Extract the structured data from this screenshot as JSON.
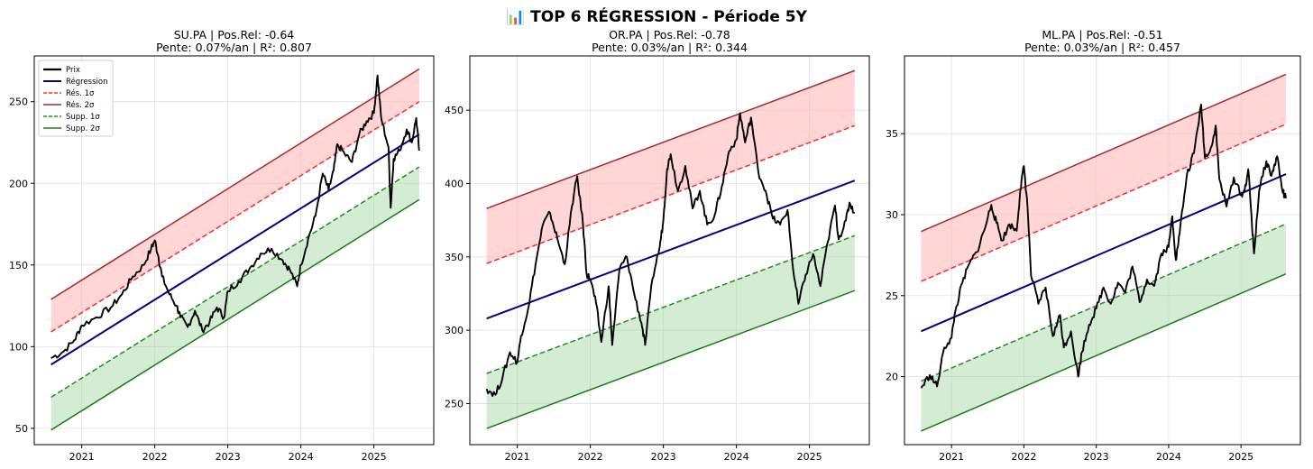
{
  "suptitle": "📊 TOP 6 RÉGRESSION - Période 5Y",
  "legend_labels": [
    "Prix",
    "Régression",
    "Rés. 1σ",
    "Rés. 2σ",
    "Supp. 1σ",
    "Supp. 2σ"
  ],
  "colors": {
    "price": "#000000",
    "regression": "#000080",
    "res1": "#ff2a2a",
    "res2": "#a52a2a",
    "supp1": "#228b22",
    "supp2": "#1a7a1a",
    "res_fill": "#ffb3b3",
    "supp_fill": "#9fd29f"
  },
  "chart_data": [
    {
      "type": "line",
      "title_line1": "SU.PA | Pos.Rel: -0.64",
      "title_line2": "Pente: 0.07%/an | R²: 0.807",
      "x_range": [
        2020.58,
        2025.62
      ],
      "xlim": [
        2020.35,
        2025.82
      ],
      "ylim": [
        40,
        278
      ],
      "xticks": [
        2021,
        2022,
        2023,
        2024,
        2025
      ],
      "yticks": [
        50,
        100,
        150,
        200,
        250
      ],
      "legend": "top-left",
      "regression": [
        89,
        230
      ],
      "sigma": 20,
      "price": [
        [
          2020.58,
          93
        ],
        [
          2020.75,
          97
        ],
        [
          2020.9,
          104
        ],
        [
          2021.0,
          113
        ],
        [
          2021.2,
          118
        ],
        [
          2021.4,
          124
        ],
        [
          2021.55,
          132
        ],
        [
          2021.7,
          143
        ],
        [
          2021.85,
          150
        ],
        [
          2021.95,
          160
        ],
        [
          2022.0,
          165
        ],
        [
          2022.05,
          155
        ],
        [
          2022.1,
          143
        ],
        [
          2022.2,
          132
        ],
        [
          2022.3,
          125
        ],
        [
          2022.35,
          118
        ],
        [
          2022.45,
          112
        ],
        [
          2022.55,
          122
        ],
        [
          2022.65,
          110
        ],
        [
          2022.75,
          115
        ],
        [
          2022.85,
          124
        ],
        [
          2022.95,
          118
        ],
        [
          2023.0,
          134
        ],
        [
          2023.15,
          140
        ],
        [
          2023.3,
          148
        ],
        [
          2023.45,
          157
        ],
        [
          2023.6,
          160
        ],
        [
          2023.75,
          153
        ],
        [
          2023.85,
          147
        ],
        [
          2023.95,
          137
        ],
        [
          2024.0,
          150
        ],
        [
          2024.1,
          166
        ],
        [
          2024.2,
          180
        ],
        [
          2024.3,
          206
        ],
        [
          2024.38,
          196
        ],
        [
          2024.45,
          208
        ],
        [
          2024.5,
          224
        ],
        [
          2024.6,
          218
        ],
        [
          2024.7,
          213
        ],
        [
          2024.8,
          230
        ],
        [
          2024.9,
          238
        ],
        [
          2025.0,
          243
        ],
        [
          2025.05,
          266
        ],
        [
          2025.1,
          240
        ],
        [
          2025.2,
          222
        ],
        [
          2025.23,
          185
        ],
        [
          2025.27,
          215
        ],
        [
          2025.35,
          220
        ],
        [
          2025.45,
          233
        ],
        [
          2025.52,
          225
        ],
        [
          2025.58,
          240
        ],
        [
          2025.62,
          220
        ]
      ]
    },
    {
      "type": "line",
      "title_line1": "OR.PA | Pos.Rel: -0.78",
      "title_line2": "Pente: 0.03%/an | R²: 0.344",
      "x_range": [
        2020.58,
        2025.62
      ],
      "xlim": [
        2020.35,
        2025.82
      ],
      "ylim": [
        222,
        487
      ],
      "xticks": [
        2021,
        2022,
        2023,
        2024,
        2025
      ],
      "yticks": [
        250,
        300,
        350,
        400,
        450
      ],
      "legend": "none",
      "regression": [
        308,
        402
      ],
      "sigma": 37.5,
      "price": [
        [
          2020.58,
          260
        ],
        [
          2020.7,
          256
        ],
        [
          2020.8,
          268
        ],
        [
          2020.9,
          285
        ],
        [
          2021.0,
          278
        ],
        [
          2021.05,
          296
        ],
        [
          2021.15,
          315
        ],
        [
          2021.25,
          345
        ],
        [
          2021.35,
          372
        ],
        [
          2021.45,
          380
        ],
        [
          2021.55,
          362
        ],
        [
          2021.65,
          345
        ],
        [
          2021.75,
          385
        ],
        [
          2021.82,
          405
        ],
        [
          2021.9,
          372
        ],
        [
          2021.95,
          338
        ],
        [
          2022.0,
          335
        ],
        [
          2022.08,
          318
        ],
        [
          2022.15,
          292
        ],
        [
          2022.25,
          330
        ],
        [
          2022.3,
          290
        ],
        [
          2022.4,
          342
        ],
        [
          2022.5,
          350
        ],
        [
          2022.6,
          325
        ],
        [
          2022.7,
          305
        ],
        [
          2022.75,
          290
        ],
        [
          2022.85,
          335
        ],
        [
          2022.95,
          357
        ],
        [
          2023.0,
          375
        ],
        [
          2023.05,
          410
        ],
        [
          2023.1,
          420
        ],
        [
          2023.2,
          395
        ],
        [
          2023.3,
          412
        ],
        [
          2023.4,
          383
        ],
        [
          2023.5,
          395
        ],
        [
          2023.6,
          372
        ],
        [
          2023.7,
          378
        ],
        [
          2023.8,
          398
        ],
        [
          2023.9,
          422
        ],
        [
          2024.0,
          430
        ],
        [
          2024.05,
          448
        ],
        [
          2024.12,
          428
        ],
        [
          2024.2,
          445
        ],
        [
          2024.3,
          408
        ],
        [
          2024.4,
          395
        ],
        [
          2024.5,
          376
        ],
        [
          2024.6,
          372
        ],
        [
          2024.7,
          382
        ],
        [
          2024.78,
          340
        ],
        [
          2024.85,
          318
        ],
        [
          2024.95,
          338
        ],
        [
          2025.05,
          352
        ],
        [
          2025.15,
          330
        ],
        [
          2025.25,
          360
        ],
        [
          2025.35,
          385
        ],
        [
          2025.4,
          362
        ],
        [
          2025.5,
          375
        ],
        [
          2025.55,
          387
        ],
        [
          2025.62,
          380
        ]
      ]
    },
    {
      "type": "line",
      "title_line1": "ML.PA | Pos.Rel: -0.51",
      "title_line2": "Pente: 0.03%/an | R²: 0.457",
      "x_range": [
        2020.58,
        2025.62
      ],
      "xlim": [
        2020.35,
        2025.82
      ],
      "ylim": [
        15.8,
        39.8
      ],
      "xticks": [
        2021,
        2022,
        2023,
        2024,
        2025
      ],
      "yticks": [
        20,
        25,
        30,
        35
      ],
      "legend": "none",
      "regression": [
        22.8,
        32.5
      ],
      "sigma": 3.08,
      "price": [
        [
          2020.58,
          19.3
        ],
        [
          2020.7,
          20.1
        ],
        [
          2020.8,
          19.4
        ],
        [
          2020.9,
          21.8
        ],
        [
          2021.0,
          22.4
        ],
        [
          2021.05,
          24.0
        ],
        [
          2021.15,
          25.8
        ],
        [
          2021.25,
          27.0
        ],
        [
          2021.35,
          27.7
        ],
        [
          2021.45,
          29.0
        ],
        [
          2021.55,
          30.6
        ],
        [
          2021.62,
          29.5
        ],
        [
          2021.7,
          28.4
        ],
        [
          2021.8,
          29.4
        ],
        [
          2021.9,
          29.0
        ],
        [
          2021.95,
          31.5
        ],
        [
          2022.0,
          33.0
        ],
        [
          2022.05,
          30.5
        ],
        [
          2022.1,
          26.2
        ],
        [
          2022.2,
          24.5
        ],
        [
          2022.3,
          25.5
        ],
        [
          2022.4,
          22.5
        ],
        [
          2022.5,
          23.8
        ],
        [
          2022.55,
          21.8
        ],
        [
          2022.65,
          22.8
        ],
        [
          2022.75,
          20.0
        ],
        [
          2022.8,
          21.5
        ],
        [
          2022.9,
          23.2
        ],
        [
          2023.0,
          24.2
        ],
        [
          2023.1,
          25.5
        ],
        [
          2023.2,
          24.5
        ],
        [
          2023.3,
          25.8
        ],
        [
          2023.4,
          25.2
        ],
        [
          2023.5,
          26.8
        ],
        [
          2023.6,
          24.6
        ],
        [
          2023.7,
          26.0
        ],
        [
          2023.8,
          25.6
        ],
        [
          2023.9,
          27.6
        ],
        [
          2024.0,
          28.0
        ],
        [
          2024.05,
          29.9
        ],
        [
          2024.1,
          27.2
        ],
        [
          2024.15,
          28.8
        ],
        [
          2024.25,
          32.4
        ],
        [
          2024.35,
          33.8
        ],
        [
          2024.45,
          36.8
        ],
        [
          2024.5,
          33.5
        ],
        [
          2024.6,
          34.3
        ],
        [
          2024.65,
          35.5
        ],
        [
          2024.7,
          32.2
        ],
        [
          2024.8,
          30.5
        ],
        [
          2024.9,
          32.3
        ],
        [
          2025.0,
          31.2
        ],
        [
          2025.05,
          31.5
        ],
        [
          2025.1,
          32.8
        ],
        [
          2025.15,
          29.5
        ],
        [
          2025.18,
          27.6
        ],
        [
          2025.25,
          31.5
        ],
        [
          2025.35,
          33.3
        ],
        [
          2025.42,
          32.4
        ],
        [
          2025.5,
          33.6
        ],
        [
          2025.57,
          31.5
        ],
        [
          2025.62,
          31.0
        ]
      ]
    }
  ]
}
